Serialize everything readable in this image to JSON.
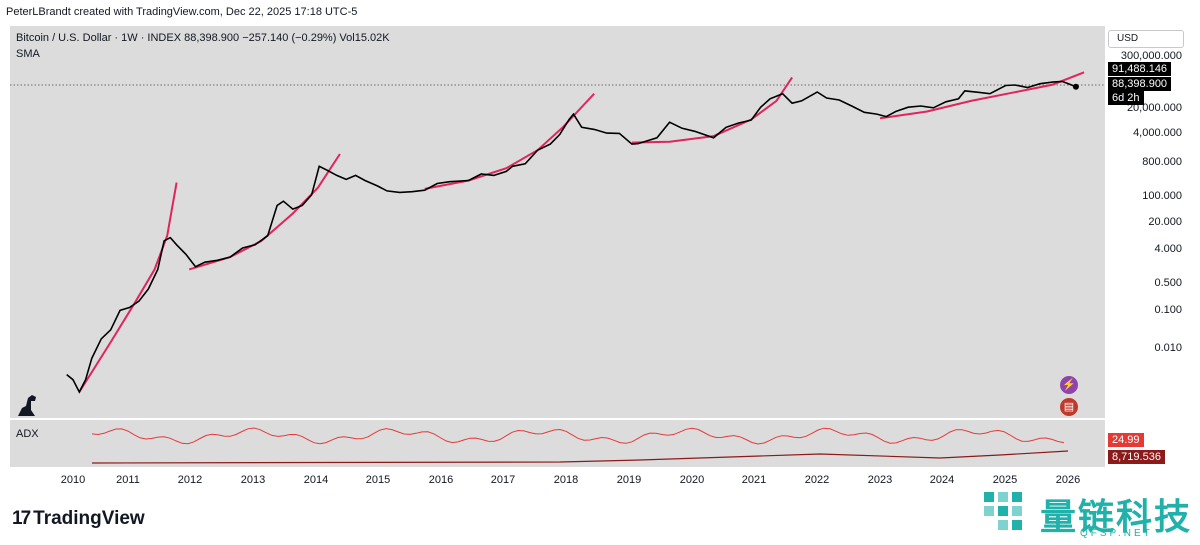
{
  "header": {
    "attribution": "PeterLBrandt created with TradingView.com, Dec 22, 2025 17:18 UTC-5",
    "symbol_line": "Bitcoin / U.S. Dollar · 1W · INDEX  88,398.900  −257.140 (−0.29%)  Vol15.02K",
    "indicator": "SMA"
  },
  "currency_button": "USD",
  "price_scale": {
    "labels": [
      "300,000.000",
      "20,000.000",
      "4,000.000",
      "800.000",
      "100.000",
      "20.000",
      "4.000",
      "0.500",
      "0.100",
      "0.010"
    ],
    "tags": {
      "upper": "91,488.146",
      "current": "88,398.900",
      "countdown": "6d 2h"
    }
  },
  "adx_panel": {
    "label": "ADX",
    "value": "24.99",
    "volume_value": "8,719.536"
  },
  "x_axis": {
    "ticks": [
      "2010",
      "2011",
      "2012",
      "2013",
      "2014",
      "2015",
      "2016",
      "2017",
      "2018",
      "2019",
      "2020",
      "2021",
      "2022",
      "2023",
      "2024",
      "2025",
      "2026"
    ]
  },
  "colors": {
    "price_line": "#000000",
    "parabolic_arc": "#e0245e",
    "adx_line": "#e33b3b",
    "volume_line": "#8b1a1a",
    "plot_bg": "#dcdcdc"
  },
  "icons": {
    "dino": "dino-icon",
    "flash": "lightning-icon",
    "flag": "us-flag-icon"
  },
  "footer": {
    "brand": "TradingView",
    "watermark": "量链科技",
    "watermark_sub": "QFSP.NET"
  },
  "chart_data": {
    "type": "line",
    "title": "Bitcoin / U.S. Dollar · 1W · INDEX",
    "y_scale": "log",
    "ylim": [
      0.003,
      400000
    ],
    "xlim": [
      2009.9,
      2026.15
    ],
    "series": [
      {
        "name": "Bitcoin / U.S. Dollar",
        "points": [
          [
            2009.9,
            0.008
          ],
          [
            2010.0,
            0.006
          ],
          [
            2010.1,
            0.003
          ],
          [
            2010.2,
            0.006
          ],
          [
            2010.3,
            0.02
          ],
          [
            2010.45,
            0.06
          ],
          [
            2010.6,
            0.1
          ],
          [
            2010.75,
            0.3
          ],
          [
            2010.9,
            0.35
          ],
          [
            2011.05,
            0.5
          ],
          [
            2011.2,
            1.0
          ],
          [
            2011.35,
            3.0
          ],
          [
            2011.45,
            15.0
          ],
          [
            2011.55,
            18.0
          ],
          [
            2011.65,
            12.0
          ],
          [
            2011.8,
            7.0
          ],
          [
            2011.95,
            3.5
          ],
          [
            2012.1,
            4.5
          ],
          [
            2012.3,
            5.0
          ],
          [
            2012.5,
            6.0
          ],
          [
            2012.7,
            10.0
          ],
          [
            2012.9,
            12.0
          ],
          [
            2013.1,
            20.0
          ],
          [
            2013.25,
            110.0
          ],
          [
            2013.35,
            140.0
          ],
          [
            2013.5,
            90.0
          ],
          [
            2013.65,
            110.0
          ],
          [
            2013.8,
            200.0
          ],
          [
            2013.92,
            1000.0
          ],
          [
            2014.05,
            800.0
          ],
          [
            2014.2,
            600.0
          ],
          [
            2014.35,
            480.0
          ],
          [
            2014.5,
            600.0
          ],
          [
            2014.65,
            450.0
          ],
          [
            2014.85,
            330.0
          ],
          [
            2015.0,
            250.0
          ],
          [
            2015.2,
            230.0
          ],
          [
            2015.4,
            240.0
          ],
          [
            2015.6,
            260.0
          ],
          [
            2015.8,
            380.0
          ],
          [
            2016.0,
            420.0
          ],
          [
            2016.3,
            450.0
          ],
          [
            2016.5,
            650.0
          ],
          [
            2016.7,
            600.0
          ],
          [
            2016.9,
            750.0
          ],
          [
            2017.0,
            1000.0
          ],
          [
            2017.2,
            1150.0
          ],
          [
            2017.4,
            2500.0
          ],
          [
            2017.6,
            3500.0
          ],
          [
            2017.75,
            6000.0
          ],
          [
            2017.9,
            14000.0
          ],
          [
            2017.97,
            19000.0
          ],
          [
            2018.1,
            9000.0
          ],
          [
            2018.3,
            8000.0
          ],
          [
            2018.5,
            6500.0
          ],
          [
            2018.7,
            6400.0
          ],
          [
            2018.9,
            3500.0
          ],
          [
            2019.0,
            3600.0
          ],
          [
            2019.3,
            5000.0
          ],
          [
            2019.5,
            12000.0
          ],
          [
            2019.7,
            8500.0
          ],
          [
            2019.9,
            7200.0
          ],
          [
            2020.2,
            5000.0
          ],
          [
            2020.4,
            9000.0
          ],
          [
            2020.6,
            11500.0
          ],
          [
            2020.8,
            13500.0
          ],
          [
            2020.95,
            28000.0
          ],
          [
            2021.1,
            45000.0
          ],
          [
            2021.3,
            60000.0
          ],
          [
            2021.45,
            35000.0
          ],
          [
            2021.6,
            40000.0
          ],
          [
            2021.85,
            66000.0
          ],
          [
            2022.0,
            47000.0
          ],
          [
            2022.2,
            42000.0
          ],
          [
            2022.4,
            30000.0
          ],
          [
            2022.6,
            21000.0
          ],
          [
            2022.8,
            19000.0
          ],
          [
            2022.95,
            16500.0
          ],
          [
            2023.1,
            22000.0
          ],
          [
            2023.3,
            28000.0
          ],
          [
            2023.5,
            30000.0
          ],
          [
            2023.7,
            27000.0
          ],
          [
            2023.9,
            38000.0
          ],
          [
            2024.1,
            45000.0
          ],
          [
            2024.2,
            70000.0
          ],
          [
            2024.4,
            65000.0
          ],
          [
            2024.6,
            60000.0
          ],
          [
            2024.85,
            95000.0
          ],
          [
            2025.0,
            98000.0
          ],
          [
            2025.2,
            85000.0
          ],
          [
            2025.4,
            105000.0
          ],
          [
            2025.6,
            115000.0
          ],
          [
            2025.75,
            120000.0
          ],
          [
            2025.85,
            105000.0
          ],
          [
            2025.97,
            88398.9
          ]
        ]
      }
    ],
    "arcs": [
      {
        "name": "arc1",
        "points": [
          [
            2010.1,
            0.003
          ],
          [
            2010.6,
            0.05
          ],
          [
            2011.0,
            0.5
          ],
          [
            2011.3,
            3.0
          ],
          [
            2011.5,
            20.0
          ],
          [
            2011.65,
            400.0
          ]
        ]
      },
      {
        "name": "arc2",
        "points": [
          [
            2011.85,
            3.0
          ],
          [
            2012.5,
            6.0
          ],
          [
            2013.0,
            15.0
          ],
          [
            2013.5,
            70.0
          ],
          [
            2013.9,
            300.0
          ],
          [
            2014.25,
            2000.0
          ]
        ]
      },
      {
        "name": "arc3",
        "points": [
          [
            2015.6,
            280.0
          ],
          [
            2016.3,
            450.0
          ],
          [
            2016.9,
            900.0
          ],
          [
            2017.4,
            2500.0
          ],
          [
            2017.8,
            9000.0
          ],
          [
            2018.3,
            60000.0
          ]
        ]
      },
      {
        "name": "arc4",
        "points": [
          [
            2018.9,
            3800.0
          ],
          [
            2019.5,
            4000.0
          ],
          [
            2020.2,
            5500.0
          ],
          [
            2020.8,
            14000.0
          ],
          [
            2021.2,
            40000.0
          ],
          [
            2021.45,
            150000.0
          ]
        ]
      },
      {
        "name": "arc5",
        "points": [
          [
            2022.85,
            15000.0
          ],
          [
            2023.6,
            22000.0
          ],
          [
            2024.3,
            40000.0
          ],
          [
            2025.0,
            65000.0
          ],
          [
            2025.6,
            100000.0
          ],
          [
            2026.1,
            200000.0
          ]
        ]
      }
    ]
  }
}
